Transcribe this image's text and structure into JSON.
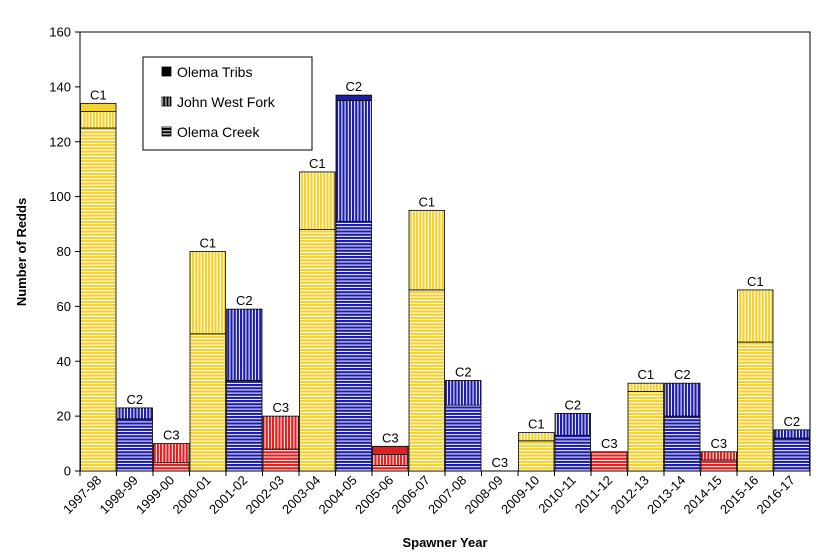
{
  "chart_data": {
    "type": "stacked_bar",
    "x_label": "Spawner Year",
    "y_label": "Number of Redds",
    "categories": [
      "1997-98",
      "1998-99",
      "1999-00",
      "2000-01",
      "2001-02",
      "2002-03",
      "2003-04",
      "2004-05",
      "2005-06",
      "2006-07",
      "2007-08",
      "2008-09",
      "2009-10",
      "2010-11",
      "2011-12",
      "2012-13",
      "2013-14",
      "2014-15",
      "2015-16",
      "2016-17"
    ],
    "bar_labels": [
      "C1",
      "C2",
      "C3",
      "C1",
      "C2",
      "C3",
      "C1",
      "C2",
      "C3",
      "C1",
      "C2",
      "C3",
      "C1",
      "C2",
      "C3",
      "C1",
      "C2",
      "C3",
      "C1",
      "C2"
    ],
    "bar_colors": [
      "#f2d230",
      "#1c1ca8",
      "#e02020",
      "#f2d230",
      "#1c1ca8",
      "#e02020",
      "#f2d230",
      "#1c1ca8",
      "#e02020",
      "#f2d230",
      "#1c1ca8",
      "#e02020",
      "#f2d230",
      "#1c1ca8",
      "#e02020",
      "#f2d230",
      "#1c1ca8",
      "#e02020",
      "#f2d230",
      "#1c1ca8"
    ],
    "series": [
      {
        "name": "Olema Creek",
        "pattern": "horizontal",
        "color": "#000000",
        "values": [
          125,
          19,
          3,
          50,
          33,
          8,
          88,
          91,
          2,
          66,
          24,
          0,
          11,
          13,
          7,
          29,
          20,
          4,
          47,
          12
        ]
      },
      {
        "name": "John West Fork",
        "pattern": "vertical",
        "color": "#000000",
        "values": [
          6,
          4,
          7,
          30,
          26,
          12,
          21,
          44,
          4,
          29,
          9,
          0,
          3,
          8,
          0,
          3,
          12,
          3,
          19,
          3
        ]
      },
      {
        "name": "Olema Tribs",
        "pattern": "solid",
        "color": "#000000",
        "values": [
          3,
          0,
          0,
          0,
          0,
          0,
          0,
          2,
          3,
          0,
          0,
          0,
          0,
          0,
          0,
          0,
          0,
          0,
          0,
          0
        ]
      }
    ],
    "ylim": [
      0,
      160
    ],
    "yticks": [
      0,
      20,
      40,
      60,
      80,
      100,
      120,
      140,
      160
    ],
    "legend": "upper-left"
  }
}
